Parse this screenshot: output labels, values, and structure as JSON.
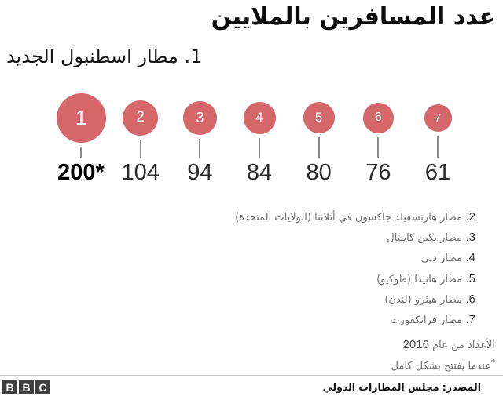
{
  "header": {
    "title": "عدد المسافرين بالملايين"
  },
  "subtitle": "1. مطار اسطنبول الجديد",
  "chart_data": {
    "type": "bubble",
    "title": "عدد المسافرين بالملايين",
    "categories": [
      "1",
      "2",
      "3",
      "4",
      "5",
      "6",
      "7"
    ],
    "values": [
      200,
      104,
      94,
      84,
      80,
      76,
      61
    ],
    "value_labels": [
      "200*",
      "104",
      "94",
      "84",
      "80",
      "76",
      "61"
    ],
    "bubble_color": "#d5676b",
    "airports": [
      {
        "rank": "1",
        "name": "مطار اسطنبول الجديد",
        "value": 200,
        "footnote": "عندما يفتتح بشكل كامل"
      },
      {
        "rank": "2",
        "name": "مطار هارتسفيلد جاكسون في أتلانتا (الولايات المتحدة)",
        "value": 104
      },
      {
        "rank": "3",
        "name": "مطار بكين كابيتال",
        "value": 94
      },
      {
        "rank": "4",
        "name": "مطار دبي",
        "value": 84
      },
      {
        "rank": "5",
        "name": "مطار هانيدا (طوكيو)",
        "value": 80
      },
      {
        "rank": "6",
        "name": "مطار هيثرو (لندن)",
        "value": 76
      },
      {
        "rank": "7",
        "name": "مطار فرانكفورت",
        "value": 61
      }
    ]
  },
  "legend_items": [
    {
      "num": "2.",
      "label": "مطار هارتسفيلد جاكسون في أتلانتا (الولايات المتحدة)"
    },
    {
      "num": "3.",
      "label": "مطار بكين كابيتال"
    },
    {
      "num": "4.",
      "label": "مطار دبي"
    },
    {
      "num": "5.",
      "label": "مطار هانيدا (طوكيو)"
    },
    {
      "num": "6.",
      "label": "مطار هيثرو (لندن)"
    },
    {
      "num": "7.",
      "label": "مطار فرانكفورت"
    }
  ],
  "notes": {
    "year_text": "الأعداد من عام",
    "year": "2016",
    "asterisk": "*",
    "asterisk_text": "عندما يفتتح بشكل كامل"
  },
  "footer": {
    "logo_letters": [
      "B",
      "B",
      "C"
    ],
    "source": "المصدر: مجلس المطارات الدولي"
  }
}
